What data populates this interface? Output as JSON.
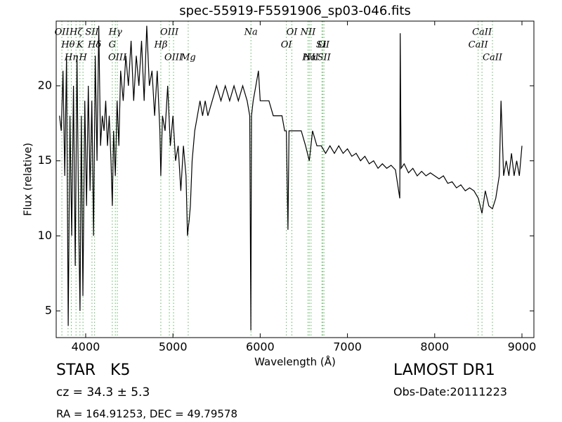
{
  "chart_data": {
    "type": "line",
    "title": "spec-55919-F5591906_sp03-046.fits",
    "x_label": "Wavelength (Å)",
    "y_label": "Flux (relative)",
    "xlim": [
      3662,
      9137
    ],
    "ylim": [
      3.22,
      24.31
    ],
    "xticks": [
      4000,
      5000,
      6000,
      7000,
      8000,
      9000
    ],
    "yticks": [
      5,
      10,
      15,
      20
    ],
    "grid": false,
    "color": "#000000",
    "line_color": "#5cb85c",
    "x": [
      3700,
      3720,
      3740,
      3760,
      3780,
      3800,
      3820,
      3840,
      3860,
      3880,
      3900,
      3920,
      3935,
      3950,
      3968,
      3990,
      4010,
      4030,
      4050,
      4070,
      4090,
      4110,
      4130,
      4150,
      4170,
      4190,
      4210,
      4230,
      4250,
      4270,
      4290,
      4305,
      4320,
      4340,
      4360,
      4380,
      4400,
      4430,
      4460,
      4490,
      4520,
      4550,
      4580,
      4610,
      4640,
      4670,
      4700,
      4730,
      4760,
      4790,
      4820,
      4850,
      4861,
      4880,
      4910,
      4940,
      4970,
      5000,
      5030,
      5060,
      5090,
      5120,
      5150,
      5167,
      5175,
      5185,
      5200,
      5220,
      5250,
      5280,
      5310,
      5340,
      5370,
      5400,
      5450,
      5500,
      5550,
      5600,
      5650,
      5700,
      5750,
      5800,
      5850,
      5880,
      5893,
      5900,
      5920,
      5950,
      5980,
      6000,
      6050,
      6100,
      6150,
      6200,
      6250,
      6280,
      6300,
      6318,
      6330,
      6380,
      6420,
      6470,
      6520,
      6563,
      6600,
      6650,
      6700,
      6750,
      6800,
      6850,
      6900,
      6950,
      7000,
      7050,
      7100,
      7150,
      7200,
      7250,
      7300,
      7350,
      7400,
      7450,
      7500,
      7550,
      7600,
      7605,
      7615,
      7650,
      7700,
      7750,
      7800,
      7850,
      7900,
      7950,
      8000,
      8050,
      8100,
      8150,
      8200,
      8250,
      8300,
      8350,
      8400,
      8450,
      8500,
      8542,
      8580,
      8620,
      8662,
      8700,
      8740,
      8760,
      8790,
      8820,
      8850,
      8880,
      8910,
      8940,
      8970,
      9000
    ],
    "values": [
      18,
      17,
      21,
      14,
      22,
      4,
      18,
      10,
      20,
      8,
      22,
      11,
      5,
      18,
      6,
      19,
      12,
      20,
      13,
      19,
      10,
      22,
      15,
      24,
      16,
      18,
      17,
      19,
      16,
      18,
      15,
      12,
      17,
      14,
      19,
      16,
      21,
      19,
      22,
      20,
      23,
      19,
      22,
      20,
      23,
      19,
      24,
      20,
      21,
      18,
      21,
      17,
      14,
      18,
      17,
      20,
      16,
      18,
      15,
      16,
      13,
      16,
      14,
      10,
      10.5,
      11,
      12,
      15,
      17,
      18,
      19,
      18,
      19,
      18,
      19,
      20,
      19,
      20,
      19,
      20,
      19,
      20,
      19,
      18,
      3.7,
      18,
      19,
      20,
      21,
      19,
      19,
      19,
      18,
      18,
      18,
      17,
      17,
      10.4,
      17,
      17,
      17,
      17,
      16,
      15,
      17,
      16,
      16,
      15.5,
      16,
      15.5,
      16,
      15.5,
      15.8,
      15.3,
      15.5,
      15,
      15.3,
      14.8,
      15,
      14.5,
      14.8,
      14.5,
      14.7,
      14.4,
      12.5,
      23.5,
      14.5,
      14.8,
      14.2,
      14.5,
      14,
      14.3,
      14,
      14.2,
      14,
      13.8,
      14,
      13.5,
      13.6,
      13.2,
      13.4,
      13,
      13.2,
      13,
      12.5,
      11.5,
      13,
      12,
      11.8,
      12.5,
      14,
      19,
      14,
      15,
      14,
      15.5,
      14,
      15,
      14,
      16
    ],
    "lines": [
      {
        "label": "OII",
        "x": 3727
      },
      {
        "label": "Hθ",
        "x": 3798
      },
      {
        "label": "Hη",
        "x": 3835
      },
      {
        "label": "Hζ",
        "x": 3889
      },
      {
        "label": "K",
        "x": 3934
      },
      {
        "label": "H",
        "x": 3969
      },
      {
        "label": "SII",
        "x": 4072
      },
      {
        "label": "Hδ",
        "x": 4102
      },
      {
        "label": "OIII",
        "x": 4363
      },
      {
        "label": "Hγ",
        "x": 4340
      },
      {
        "label": "G",
        "x": 4305
      },
      {
        "label": "OIII",
        "x": 5007
      },
      {
        "label": "OIII",
        "x": 4959
      },
      {
        "label": "Hβ",
        "x": 4861
      },
      {
        "label": "Mg",
        "x": 5175
      },
      {
        "label": "Na",
        "x": 5894
      },
      {
        "label": "OI",
        "x": 6300
      },
      {
        "label": "Hα",
        "x": 6563
      },
      {
        "label": "OI",
        "x": 6363
      },
      {
        "label": "SII",
        "x": 6717
      },
      {
        "label": "NII",
        "x": 6583
      },
      {
        "label": "NII",
        "x": 6548
      },
      {
        "label": "Li",
        "x": 6707
      },
      {
        "label": "SII",
        "x": 6731
      },
      {
        "label": "CaII",
        "x": 8542
      },
      {
        "label": "CaII",
        "x": 8498
      },
      {
        "label": "CaII",
        "x": 8662
      }
    ],
    "object_class": "STAR   K5",
    "redshift": "cz = 34.3 ± 5.3",
    "coords": "RA = 164.91253, DEC = 49.79578",
    "survey": "LAMOST DR1",
    "obs_date": "Obs-Date:20111223"
  }
}
